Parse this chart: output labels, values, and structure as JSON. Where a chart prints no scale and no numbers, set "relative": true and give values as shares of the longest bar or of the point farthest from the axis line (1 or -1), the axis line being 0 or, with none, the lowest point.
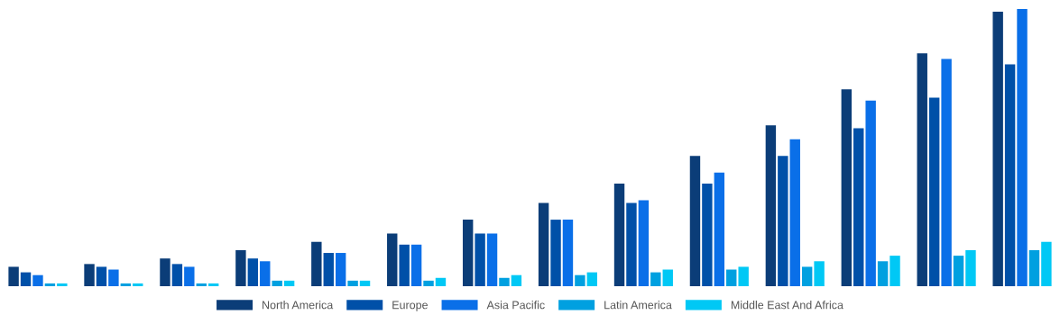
{
  "chart_data": {
    "type": "bar",
    "relative": true,
    "legend": "bottom",
    "grid": false,
    "categories": [
      null,
      null,
      null,
      null,
      null,
      null,
      null,
      null,
      null,
      null,
      null,
      null,
      null,
      null
    ],
    "series": [
      {
        "name": "North America",
        "color": "#0b3d78",
        "values": [
          0.07,
          0.08,
          0.1,
          0.13,
          0.16,
          0.19,
          0.24,
          0.3,
          0.37,
          0.47,
          0.58,
          0.71,
          0.84,
          0.99
        ]
      },
      {
        "name": "Europe",
        "color": "#0050a8",
        "values": [
          0.05,
          0.07,
          0.08,
          0.1,
          0.12,
          0.15,
          0.19,
          0.24,
          0.3,
          0.37,
          0.47,
          0.57,
          0.68,
          0.8
        ]
      },
      {
        "name": "Asia Pacific",
        "color": "#0a6fe8",
        "values": [
          0.04,
          0.06,
          0.07,
          0.09,
          0.12,
          0.15,
          0.19,
          0.24,
          0.31,
          0.41,
          0.53,
          0.67,
          0.82,
          1.0
        ]
      },
      {
        "name": "Latin America",
        "color": "#00a0e0",
        "values": [
          0.01,
          0.01,
          0.01,
          0.02,
          0.02,
          0.02,
          0.03,
          0.04,
          0.05,
          0.06,
          0.07,
          0.09,
          0.11,
          0.13
        ]
      },
      {
        "name": "Middle East And Africa",
        "color": "#00c8f5",
        "values": [
          0.01,
          0.01,
          0.01,
          0.02,
          0.02,
          0.03,
          0.04,
          0.05,
          0.06,
          0.07,
          0.09,
          0.11,
          0.13,
          0.16
        ]
      }
    ]
  }
}
